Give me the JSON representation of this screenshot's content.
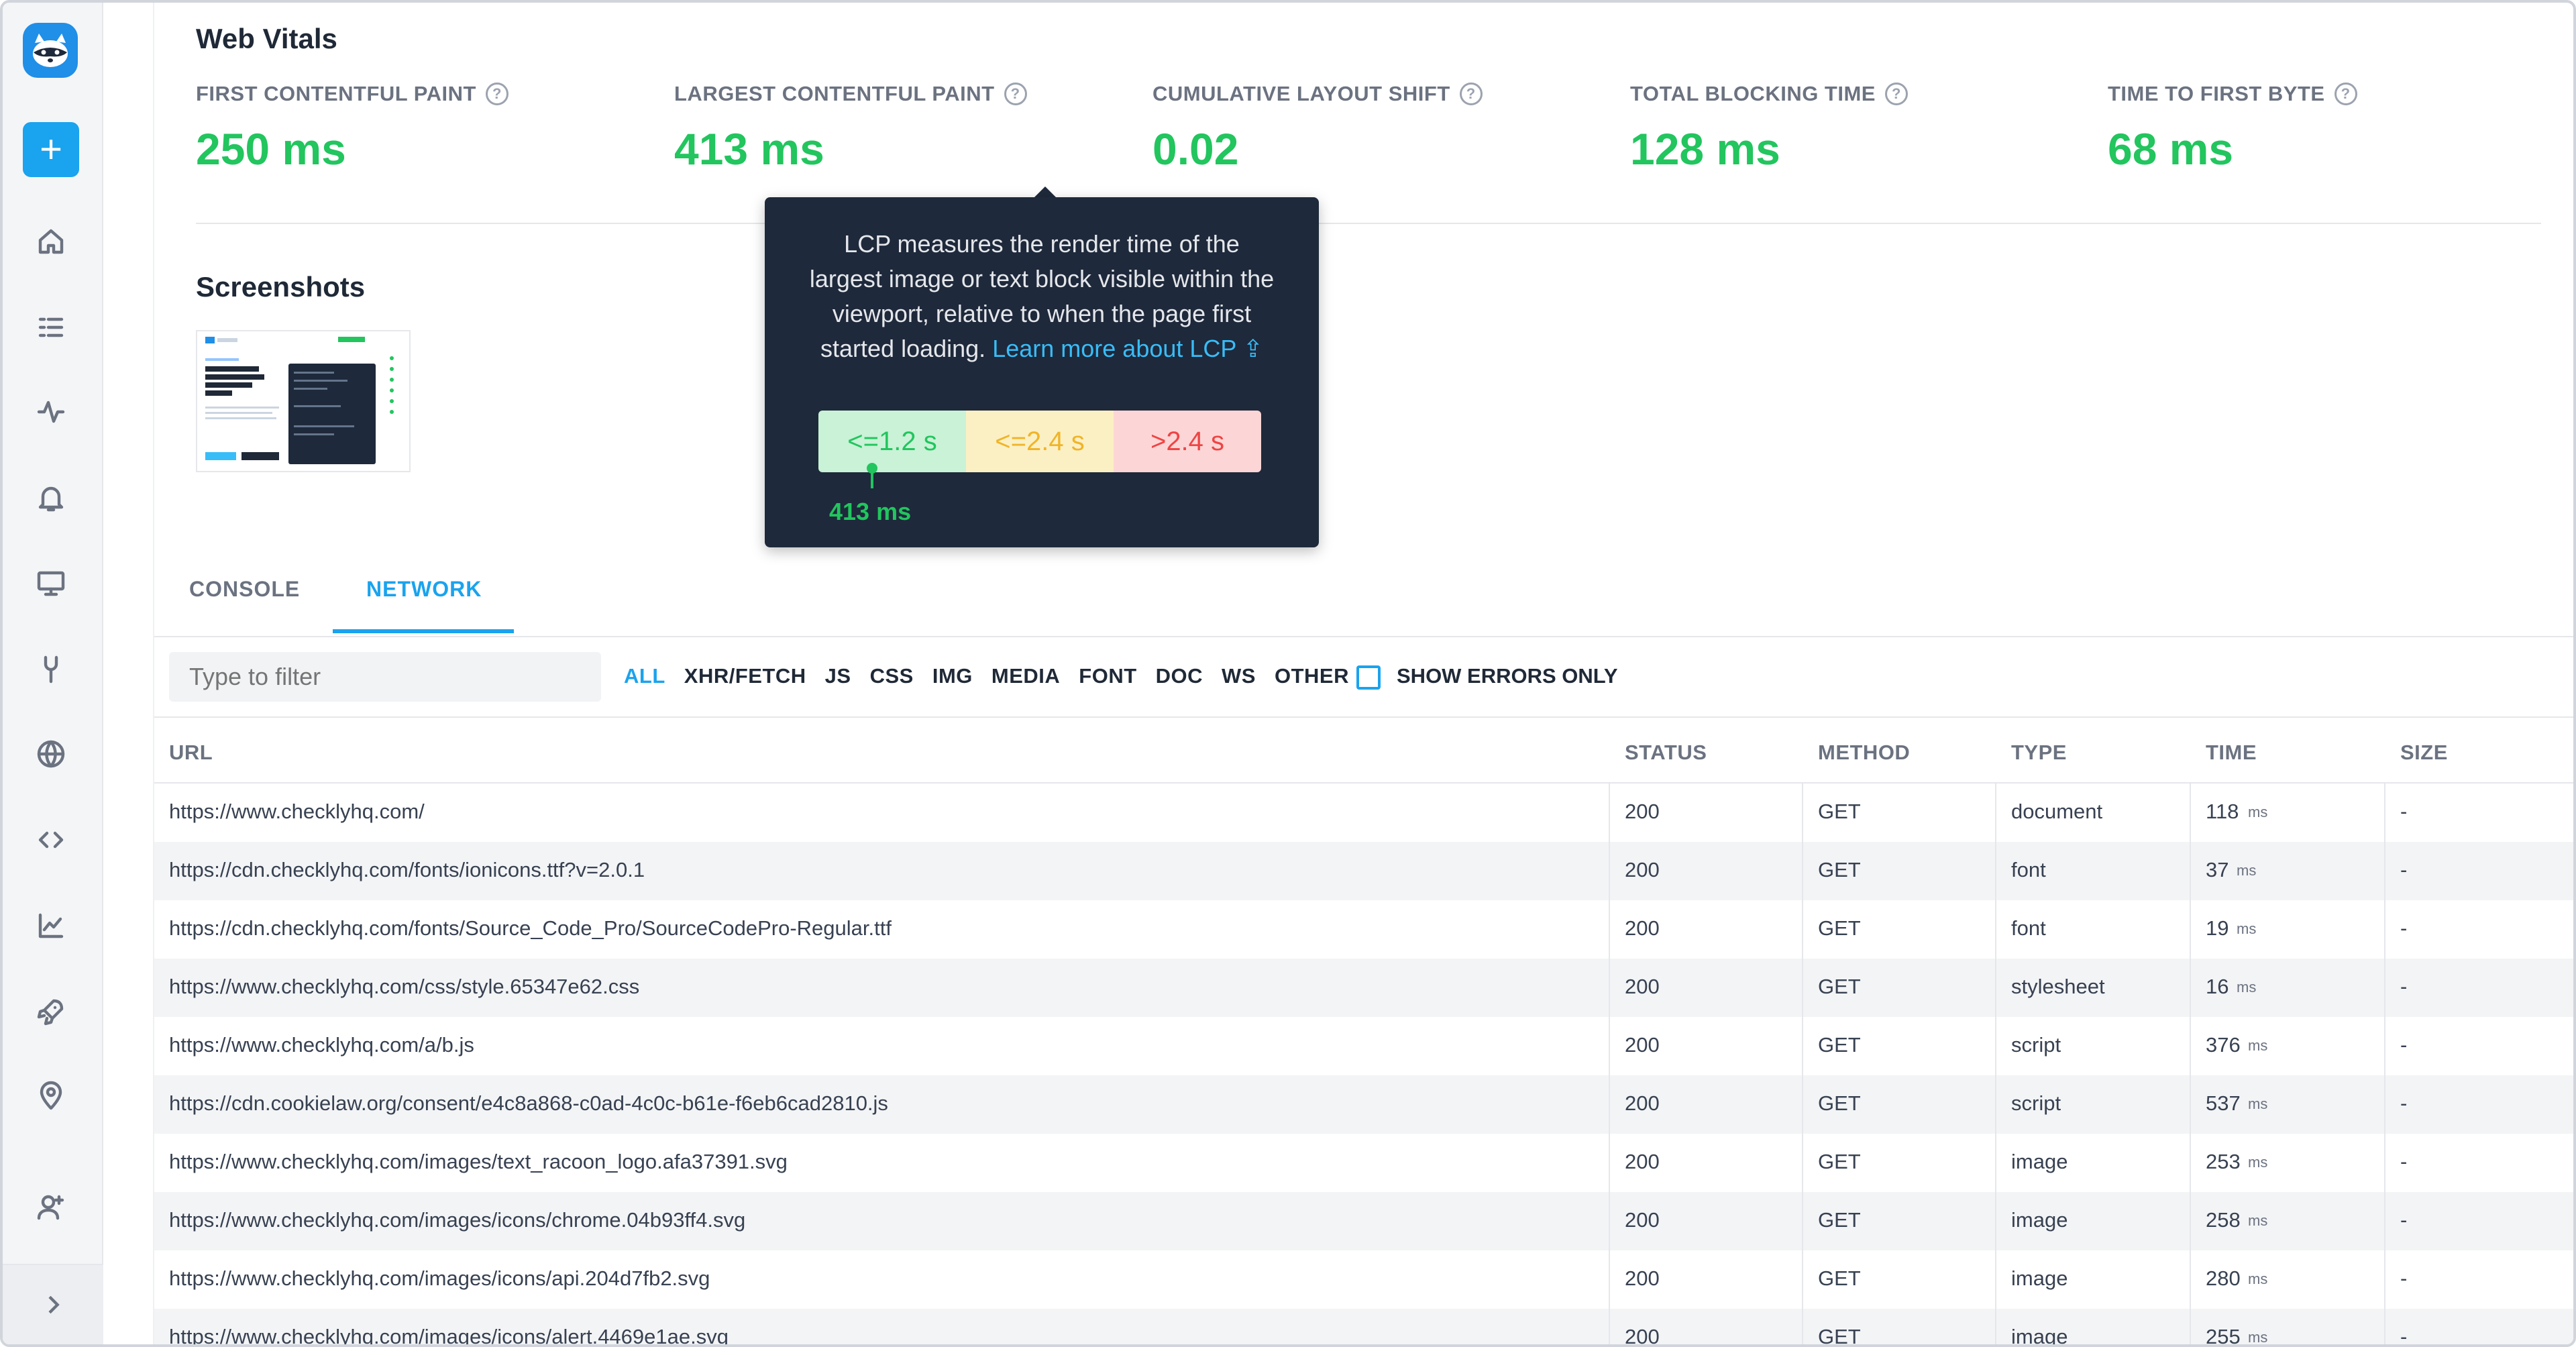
{
  "sidebar": {
    "logo": "checkly-raccoon-logo",
    "add_label": "+",
    "icons": [
      "home-icon",
      "list-icon",
      "activity-icon",
      "bell-icon",
      "monitor-icon",
      "wrench-icon",
      "globe-icon",
      "code-icon",
      "chart-icon",
      "rocket-icon",
      "location-icon",
      "add-user-icon"
    ]
  },
  "web_vitals": {
    "title": "Web Vitals",
    "metrics": [
      {
        "label": "FIRST CONTENTFUL PAINT",
        "value": "250 ms"
      },
      {
        "label": "LARGEST CONTENTFUL PAINT",
        "value": "413 ms"
      },
      {
        "label": "CUMULATIVE LAYOUT SHIFT",
        "value": "0.02"
      },
      {
        "label": "TOTAL BLOCKING TIME",
        "value": "128 ms"
      },
      {
        "label": "TIME TO FIRST BYTE",
        "value": "68 ms"
      }
    ],
    "status_color": "#22c55e"
  },
  "tooltip": {
    "text": "LCP measures the render time of the largest image or text block visible within the viewport, relative to when the page first started loading.",
    "link_text": "Learn more about LCP",
    "ranges": [
      "<=1.2 s",
      "<=2.4 s",
      ">2.4 s"
    ],
    "marker_value": "413 ms",
    "marker_fraction": 0.115
  },
  "screenshots": {
    "title": "Screenshots",
    "thumb_headline": "Code, test, and deploy synthetic monitoring at scale."
  },
  "tabs": {
    "console": "CONSOLE",
    "network": "NETWORK",
    "active": "NETWORK"
  },
  "filter": {
    "placeholder": "Type to filter",
    "types": [
      "ALL",
      "XHR/FETCH",
      "JS",
      "CSS",
      "IMG",
      "MEDIA",
      "FONT",
      "DOC",
      "WS",
      "OTHER"
    ],
    "active": "ALL",
    "errors_only_label": "SHOW ERRORS ONLY",
    "errors_only_checked": false
  },
  "table": {
    "columns": [
      "URL",
      "STATUS",
      "METHOD",
      "TYPE",
      "TIME",
      "SIZE"
    ],
    "rows": [
      {
        "url": "https://www.checklyhq.com/",
        "status": "200",
        "method": "GET",
        "type": "document",
        "time": "118",
        "size": "-"
      },
      {
        "url": "https://cdn.checklyhq.com/fonts/ionicons.ttf?v=2.0.1",
        "status": "200",
        "method": "GET",
        "type": "font",
        "time": "37",
        "size": "-"
      },
      {
        "url": "https://cdn.checklyhq.com/fonts/Source_Code_Pro/SourceCodePro-Regular.ttf",
        "status": "200",
        "method": "GET",
        "type": "font",
        "time": "19",
        "size": "-"
      },
      {
        "url": "https://www.checklyhq.com/css/style.65347e62.css",
        "status": "200",
        "method": "GET",
        "type": "stylesheet",
        "time": "16",
        "size": "-"
      },
      {
        "url": "https://www.checklyhq.com/a/b.js",
        "status": "200",
        "method": "GET",
        "type": "script",
        "time": "376",
        "size": "-"
      },
      {
        "url": "https://cdn.cookielaw.org/consent/e4c8a868-c0ad-4c0c-b61e-f6eb6cad2810.js",
        "status": "200",
        "method": "GET",
        "type": "script",
        "time": "537",
        "size": "-"
      },
      {
        "url": "https://www.checklyhq.com/images/text_racoon_logo.afa37391.svg",
        "status": "200",
        "method": "GET",
        "type": "image",
        "time": "253",
        "size": "-"
      },
      {
        "url": "https://www.checklyhq.com/images/icons/chrome.04b93ff4.svg",
        "status": "200",
        "method": "GET",
        "type": "image",
        "time": "258",
        "size": "-"
      },
      {
        "url": "https://www.checklyhq.com/images/icons/api.204d7fb2.svg",
        "status": "200",
        "method": "GET",
        "type": "image",
        "time": "280",
        "size": "-"
      },
      {
        "url": "https://www.checklyhq.com/images/icons/alert.4469e1ae.svg",
        "status": "200",
        "method": "GET",
        "type": "image",
        "time": "255",
        "size": "-"
      }
    ],
    "time_unit": "ms"
  }
}
